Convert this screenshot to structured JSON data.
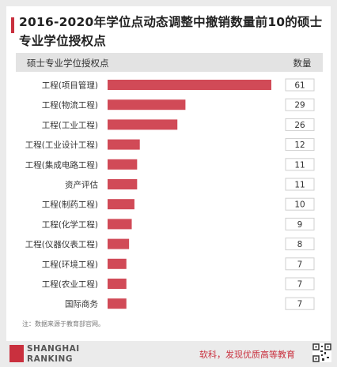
{
  "chart_data": {
    "type": "bar",
    "orientation": "horizontal",
    "title": "2016-2020年学位点动态调整中撤销数量前10的硕士专业学位授权点",
    "column_header_left": "硕士专业学位授权点",
    "column_header_right": "数量",
    "categories": [
      "工程(项目管理)",
      "工程(物流工程)",
      "工程(工业工程)",
      "工程(工业设计工程)",
      "工程(集成电路工程)",
      "资产评估",
      "工程(制药工程)",
      "工程(化学工程)",
      "工程(仪器仪表工程)",
      "工程(环境工程)",
      "工程(农业工程)",
      "国际商务"
    ],
    "values": [
      61,
      29,
      26,
      12,
      11,
      11,
      10,
      9,
      8,
      7,
      7,
      7
    ],
    "value_labels": [
      "61",
      "29",
      "26",
      "12",
      "11",
      "11",
      "10",
      "9",
      "8",
      "7",
      "7",
      "7"
    ],
    "note": "注：数据来源于教育部官网。",
    "bar_color": "#d14a57"
  },
  "footer": {
    "logo_line1": "SHANGHAI",
    "logo_line2": "RANKING",
    "logo_mark": "软科",
    "slogan": "软科，发现优质高等教育"
  },
  "colors": {
    "accent": "#c9303e"
  }
}
